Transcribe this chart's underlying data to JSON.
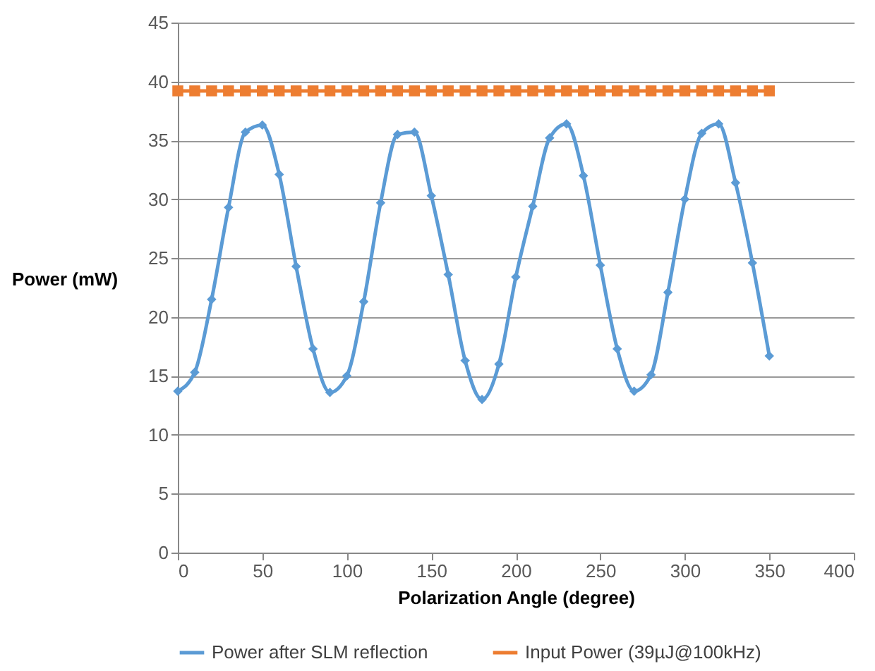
{
  "chart_data": {
    "type": "line",
    "xlabel": "Polarization Angle (degree)",
    "ylabel": "Power (mW)",
    "x": [
      0,
      10,
      20,
      30,
      40,
      50,
      60,
      70,
      80,
      90,
      100,
      110,
      120,
      130,
      140,
      150,
      160,
      170,
      180,
      190,
      200,
      210,
      220,
      230,
      240,
      250,
      260,
      270,
      280,
      290,
      300,
      310,
      320,
      330,
      340,
      350
    ],
    "series": [
      {
        "name": "Power after SLM reflection",
        "color": "#5b9bd5",
        "marker": "diamond",
        "values": [
          13.7,
          15.3,
          21.5,
          29.3,
          35.7,
          36.3,
          32.1,
          24.3,
          17.3,
          13.6,
          15.0,
          21.3,
          29.7,
          35.5,
          35.7,
          30.3,
          23.6,
          16.3,
          13.0,
          16.0,
          23.4,
          29.4,
          35.2,
          36.4,
          32.0,
          24.4,
          17.3,
          13.7,
          15.1,
          22.1,
          30.0,
          35.6,
          36.4,
          31.4,
          24.6,
          16.7
        ]
      },
      {
        "name": "Input Power (39µJ@100kHz)",
        "color": "#ed7d31",
        "marker": "square",
        "values": [
          39.2,
          39.2,
          39.2,
          39.2,
          39.2,
          39.2,
          39.2,
          39.2,
          39.2,
          39.2,
          39.2,
          39.2,
          39.2,
          39.2,
          39.2,
          39.2,
          39.2,
          39.2,
          39.2,
          39.2,
          39.2,
          39.2,
          39.2,
          39.2,
          39.2,
          39.2,
          39.2,
          39.2,
          39.2,
          39.2,
          39.2,
          39.2,
          39.2,
          39.2,
          39.2,
          39.2
        ]
      }
    ],
    "xlim": [
      0,
      400
    ],
    "xticks": [
      0,
      50,
      100,
      150,
      200,
      250,
      300,
      350,
      400
    ],
    "ylim": [
      0,
      45
    ],
    "yticks": [
      0,
      5,
      10,
      15,
      20,
      25,
      30,
      35,
      40,
      45
    ],
    "grid": "y",
    "legend": "bottom"
  }
}
